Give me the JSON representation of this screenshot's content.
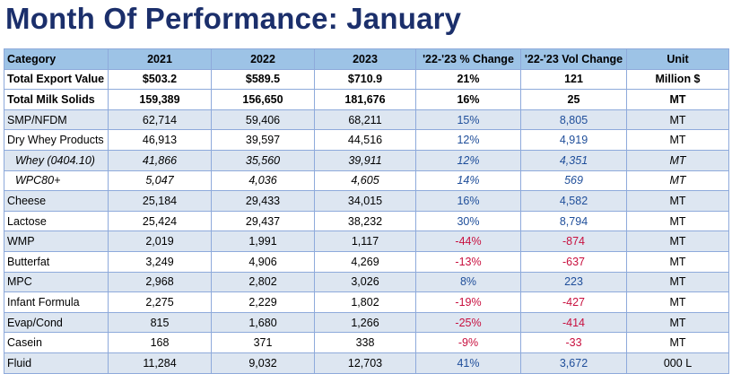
{
  "title": "Month Of Performance: January",
  "table": {
    "header": [
      "Category",
      "2021",
      "2022",
      "2023",
      "'22-'23 % Change",
      "'22-'23 Vol Change",
      "Unit"
    ],
    "rows": [
      [
        "Total Export Value",
        "$503.2",
        "$589.5",
        "$710.9",
        "21%",
        "121",
        "Million $"
      ],
      [
        "Total Milk Solids",
        "159,389",
        "156,650",
        "181,676",
        "16%",
        "25",
        "MT"
      ],
      [
        "SMP/NFDM",
        "62,714",
        "59,406",
        "68,211",
        "15%",
        "8,805",
        "MT"
      ],
      [
        "Dry Whey Products",
        "46,913",
        "39,597",
        "44,516",
        "12%",
        "4,919",
        "MT"
      ],
      [
        "Whey (0404.10)",
        "41,866",
        "35,560",
        "39,911",
        "12%",
        "4,351",
        "MT"
      ],
      [
        "WPC80+",
        "5,047",
        "4,036",
        "4,605",
        "14%",
        "569",
        "MT"
      ],
      [
        "Cheese",
        "25,184",
        "29,433",
        "34,015",
        "16%",
        "4,582",
        "MT"
      ],
      [
        "Lactose",
        "25,424",
        "29,437",
        "38,232",
        "30%",
        "8,794",
        "MT"
      ],
      [
        "WMP",
        "2,019",
        "1,991",
        "1,117",
        "-44%",
        "-874",
        "MT"
      ],
      [
        "Butterfat",
        "3,249",
        "4,906",
        "4,269",
        "-13%",
        "-637",
        "MT"
      ],
      [
        "MPC",
        "2,968",
        "2,802",
        "3,026",
        "8%",
        "223",
        "MT"
      ],
      [
        "Infant Formula",
        "2,275",
        "2,229",
        "1,802",
        "-19%",
        "-427",
        "MT"
      ],
      [
        "Evap/Cond",
        "815",
        "1,680",
        "1,266",
        "-25%",
        "-414",
        "MT"
      ],
      [
        "Casein",
        "168",
        "371",
        "338",
        "-9%",
        "-33",
        "MT"
      ],
      [
        "Fluid",
        "11,284",
        "9,032",
        "12,703",
        "41%",
        "3,672",
        "000 L"
      ]
    ]
  }
}
